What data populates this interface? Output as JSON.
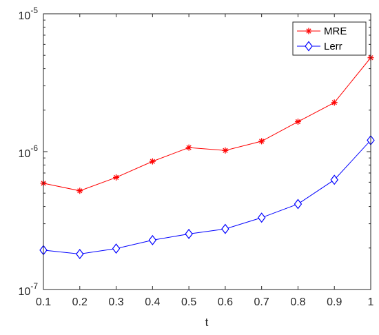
{
  "chart_data": {
    "type": "line",
    "title": "",
    "xlabel": "t",
    "ylabel": "",
    "x": [
      0.1,
      0.2,
      0.3,
      0.4,
      0.5,
      0.6,
      0.7,
      0.8,
      0.9,
      1.0
    ],
    "xlim": [
      0.1,
      1.0
    ],
    "ylim": [
      1e-07,
      1e-05
    ],
    "yscale": "log",
    "grid": false,
    "legend_position": "top-right",
    "x_ticks": [
      {
        "value": 0.1,
        "label": "0.1"
      },
      {
        "value": 0.2,
        "label": "0.2"
      },
      {
        "value": 0.3,
        "label": "0.3"
      },
      {
        "value": 0.4,
        "label": "0.4"
      },
      {
        "value": 0.5,
        "label": "0.5"
      },
      {
        "value": 0.6,
        "label": "0.6"
      },
      {
        "value": 0.7,
        "label": "0.7"
      },
      {
        "value": 0.8,
        "label": "0.8"
      },
      {
        "value": 0.9,
        "label": "0.9"
      },
      {
        "value": 1.0,
        "label": "1"
      }
    ],
    "y_ticks": [
      {
        "value": 1e-07,
        "base": "10",
        "exponent": "-7"
      },
      {
        "value": 1e-06,
        "base": "10",
        "exponent": "-6"
      },
      {
        "value": 1e-05,
        "base": "10",
        "exponent": "-5"
      }
    ],
    "series": [
      {
        "name": "MRE",
        "color": "#ff0000",
        "marker": "asterisk",
        "values": [
          5.9e-07,
          5.2e-07,
          6.5e-07,
          8.5e-07,
          1.07e-06,
          1.02e-06,
          1.19e-06,
          1.65e-06,
          2.27e-06,
          4.8e-06
        ]
      },
      {
        "name": "Lerr",
        "color": "#0000ff",
        "marker": "diamond",
        "values": [
          1.93e-07,
          1.81e-07,
          1.98e-07,
          2.28e-07,
          2.53e-07,
          2.75e-07,
          3.32e-07,
          4.17e-07,
          6.25e-07,
          1.21e-06
        ]
      }
    ]
  }
}
